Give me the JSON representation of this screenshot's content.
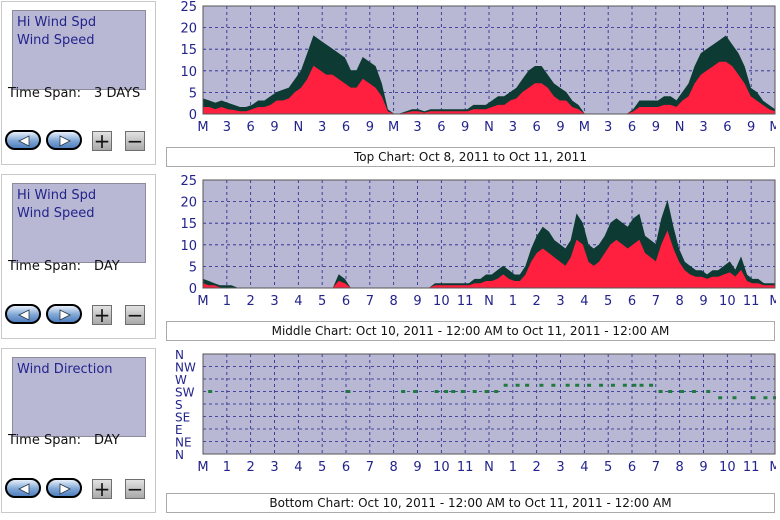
{
  "panels": [
    {
      "legend": [
        "Hi Wind Spd",
        "Wind Speed"
      ],
      "time_span_label": "Time Span:",
      "time_span_value": "3 DAYS",
      "caption": "Top Chart:  Oct 8, 2011  to  Oct 11, 2011"
    },
    {
      "legend": [
        "Hi Wind Spd",
        "Wind Speed"
      ],
      "time_span_label": "Time Span:",
      "time_span_value": "DAY",
      "caption": "Middle Chart:  Oct 10, 2011 - 12:00 AM  to  Oct 11, 2011 - 12:00 AM"
    },
    {
      "legend": [
        "Wind Direction"
      ],
      "time_span_label": "Time Span:",
      "time_span_value": "DAY",
      "caption": "Bottom Chart:  Oct 10, 2011 - 12:00 AM  to  Oct 11, 2011 - 12:00 AM"
    }
  ],
  "buttons": {
    "plus": "+",
    "minus": "−",
    "back_icon": "left-triangle-icon",
    "forward_icon": "right-triangle-icon"
  },
  "colors": {
    "plot_bg": "#b8b8d4",
    "grid": "#23238c",
    "axis_text": "#23238c",
    "hi_wind": "#0d3b33",
    "wind": "#ff1f3e",
    "direction": "#1f7a3f"
  },
  "chart_data": [
    {
      "type": "area",
      "series": [
        {
          "name": "Hi Wind Spd",
          "values": [
            3.5,
            3,
            2.5,
            3,
            2.5,
            2,
            1.5,
            1.5,
            2,
            3,
            3,
            4,
            5,
            5.5,
            6,
            8,
            10,
            14,
            18,
            17,
            16,
            15,
            14,
            13,
            10,
            10,
            13,
            12,
            11,
            7,
            1,
            0,
            0,
            0.5,
            1,
            1,
            0.5,
            1,
            1,
            1,
            1,
            1,
            1,
            1,
            2,
            2,
            2,
            3,
            4,
            4,
            5,
            6,
            8,
            10,
            11,
            11,
            9,
            7,
            6,
            5,
            3,
            2,
            0,
            0,
            0,
            0,
            0,
            0,
            0,
            0,
            1,
            3,
            3,
            3,
            3,
            4,
            4,
            3,
            5,
            7,
            11,
            14,
            15,
            16,
            17,
            18,
            16,
            14,
            11,
            6,
            5,
            3,
            2,
            1
          ]
        },
        {
          "name": "Wind Speed",
          "values": [
            1.5,
            1.5,
            1,
            1.5,
            1,
            0.8,
            0.5,
            0.5,
            1,
            1.5,
            1.5,
            2,
            3,
            3,
            3.5,
            5,
            6,
            8,
            11,
            10,
            9,
            9,
            8,
            7,
            6,
            6,
            8,
            7,
            6,
            4,
            0.5,
            0,
            0,
            0.2,
            0.5,
            0.5,
            0.2,
            0.5,
            0.5,
            0.5,
            0.5,
            0.5,
            0.5,
            0.5,
            1,
            1,
            1,
            1.5,
            2,
            2,
            3,
            3.5,
            5,
            6,
            7,
            7,
            6,
            4,
            3,
            3,
            1.5,
            1,
            0,
            0,
            0,
            0,
            0,
            0,
            0,
            0,
            0.5,
            1.5,
            1.5,
            1.5,
            1.5,
            2,
            2,
            1.5,
            3,
            4,
            7,
            9,
            10,
            11,
            12,
            12,
            11,
            9,
            7,
            4,
            3,
            2,
            1,
            0.5
          ]
        }
      ],
      "x_tick_labels": [
        "M",
        "3",
        "6",
        "9",
        "N",
        "3",
        "6",
        "9",
        "M",
        "3",
        "6",
        "9",
        "N",
        "3",
        "6",
        "9",
        "M",
        "3",
        "6",
        "9",
        "N",
        "3",
        "6",
        "9",
        "M"
      ],
      "ylim": [
        0,
        25
      ],
      "y_ticks": [
        0,
        5,
        10,
        15,
        20,
        25
      ],
      "grid": true
    },
    {
      "type": "area",
      "series": [
        {
          "name": "Hi Wind Spd",
          "values": [
            2,
            1.5,
            1,
            0.5,
            0.5,
            0.5,
            0,
            0,
            0,
            0,
            0,
            0,
            0,
            0,
            0,
            0,
            0,
            0,
            0,
            0,
            0,
            0,
            0,
            0,
            3,
            2,
            0,
            0,
            0,
            0,
            0,
            0,
            0,
            0,
            0,
            0,
            0,
            0,
            0,
            0,
            0,
            1,
            1,
            1,
            1,
            1,
            1,
            1,
            2,
            2,
            3,
            3,
            4,
            5,
            4,
            3,
            3,
            5,
            9,
            12,
            14,
            13,
            11,
            10,
            9,
            11,
            17,
            15,
            10,
            9,
            10,
            12,
            15,
            16,
            15,
            14,
            16,
            17,
            12,
            11,
            10,
            16,
            20,
            14,
            9,
            6,
            5,
            4,
            4,
            3,
            4,
            4,
            5,
            6,
            4,
            7,
            3,
            2,
            2,
            1,
            1,
            1
          ]
        },
        {
          "name": "Wind Speed",
          "values": [
            1,
            0.5,
            0.5,
            0,
            0,
            0,
            0,
            0,
            0,
            0,
            0,
            0,
            0,
            0,
            0,
            0,
            0,
            0,
            0,
            0,
            0,
            0,
            0,
            0,
            1.5,
            1,
            0,
            0,
            0,
            0,
            0,
            0,
            0,
            0,
            0,
            0,
            0,
            0,
            0,
            0,
            0,
            0.5,
            0.5,
            0.5,
            0.5,
            0.5,
            0.5,
            0.5,
            1,
            1,
            1.5,
            1.5,
            2,
            3,
            2,
            1.5,
            1.5,
            3,
            6,
            8,
            9,
            8,
            7,
            6,
            5,
            7,
            11,
            10,
            6,
            5,
            6,
            8,
            10,
            11,
            10,
            9,
            10,
            11,
            8,
            7,
            6,
            10,
            13,
            9,
            6,
            4,
            3,
            2.5,
            2.5,
            2,
            2.5,
            2.5,
            3,
            3.5,
            2.5,
            4,
            1.5,
            1,
            1,
            0.5,
            0.5,
            0.5
          ]
        }
      ],
      "x_tick_labels": [
        "M",
        "1",
        "2",
        "3",
        "4",
        "5",
        "6",
        "7",
        "8",
        "9",
        "10",
        "11",
        "N",
        "1",
        "2",
        "3",
        "4",
        "5",
        "6",
        "7",
        "8",
        "9",
        "10",
        "11",
        "M"
      ],
      "ylim": [
        0,
        25
      ],
      "y_ticks": [
        0,
        5,
        10,
        15,
        20,
        25
      ],
      "grid": true
    },
    {
      "type": "scatter",
      "series": [
        {
          "name": "Wind Direction",
          "points": [
            [
              0.3,
              "SW"
            ],
            [
              6.1,
              "SW"
            ],
            [
              8.4,
              "SW"
            ],
            [
              8.9,
              "SW"
            ],
            [
              9.8,
              "SW"
            ],
            [
              10.2,
              "SW"
            ],
            [
              10.5,
              "SW"
            ],
            [
              10.9,
              "SW"
            ],
            [
              11.4,
              "SW"
            ],
            [
              11.9,
              "SW"
            ],
            [
              12.3,
              "SW"
            ],
            [
              12.7,
              "WSW"
            ],
            [
              13.2,
              "WSW"
            ],
            [
              13.6,
              "WSW"
            ],
            [
              14.2,
              "WSW"
            ],
            [
              14.7,
              "WSW"
            ],
            [
              15.3,
              "WSW"
            ],
            [
              15.7,
              "WSW"
            ],
            [
              16.2,
              "WSW"
            ],
            [
              16.7,
              "WSW"
            ],
            [
              17.2,
              "WSW"
            ],
            [
              17.7,
              "WSW"
            ],
            [
              18.1,
              "WSW"
            ],
            [
              18.4,
              "WSW"
            ],
            [
              18.8,
              "WSW"
            ],
            [
              19.2,
              "SW"
            ],
            [
              19.6,
              "SW"
            ],
            [
              20.1,
              "SW"
            ],
            [
              20.6,
              "SW"
            ],
            [
              21.2,
              "SW"
            ],
            [
              21.7,
              "SSW"
            ],
            [
              22.3,
              "SSW"
            ],
            [
              23.1,
              "SSW"
            ],
            [
              23.6,
              "SSW"
            ],
            [
              24.0,
              "SSW"
            ]
          ]
        }
      ],
      "x_tick_labels": [
        "M",
        "1",
        "2",
        "3",
        "4",
        "5",
        "6",
        "7",
        "8",
        "9",
        "10",
        "11",
        "N",
        "1",
        "2",
        "3",
        "4",
        "5",
        "6",
        "7",
        "8",
        "9",
        "10",
        "11",
        "M"
      ],
      "y_categories": [
        "N",
        "NW",
        "W",
        "SW",
        "S",
        "SE",
        "E",
        "NE",
        "N"
      ],
      "grid": true
    }
  ]
}
